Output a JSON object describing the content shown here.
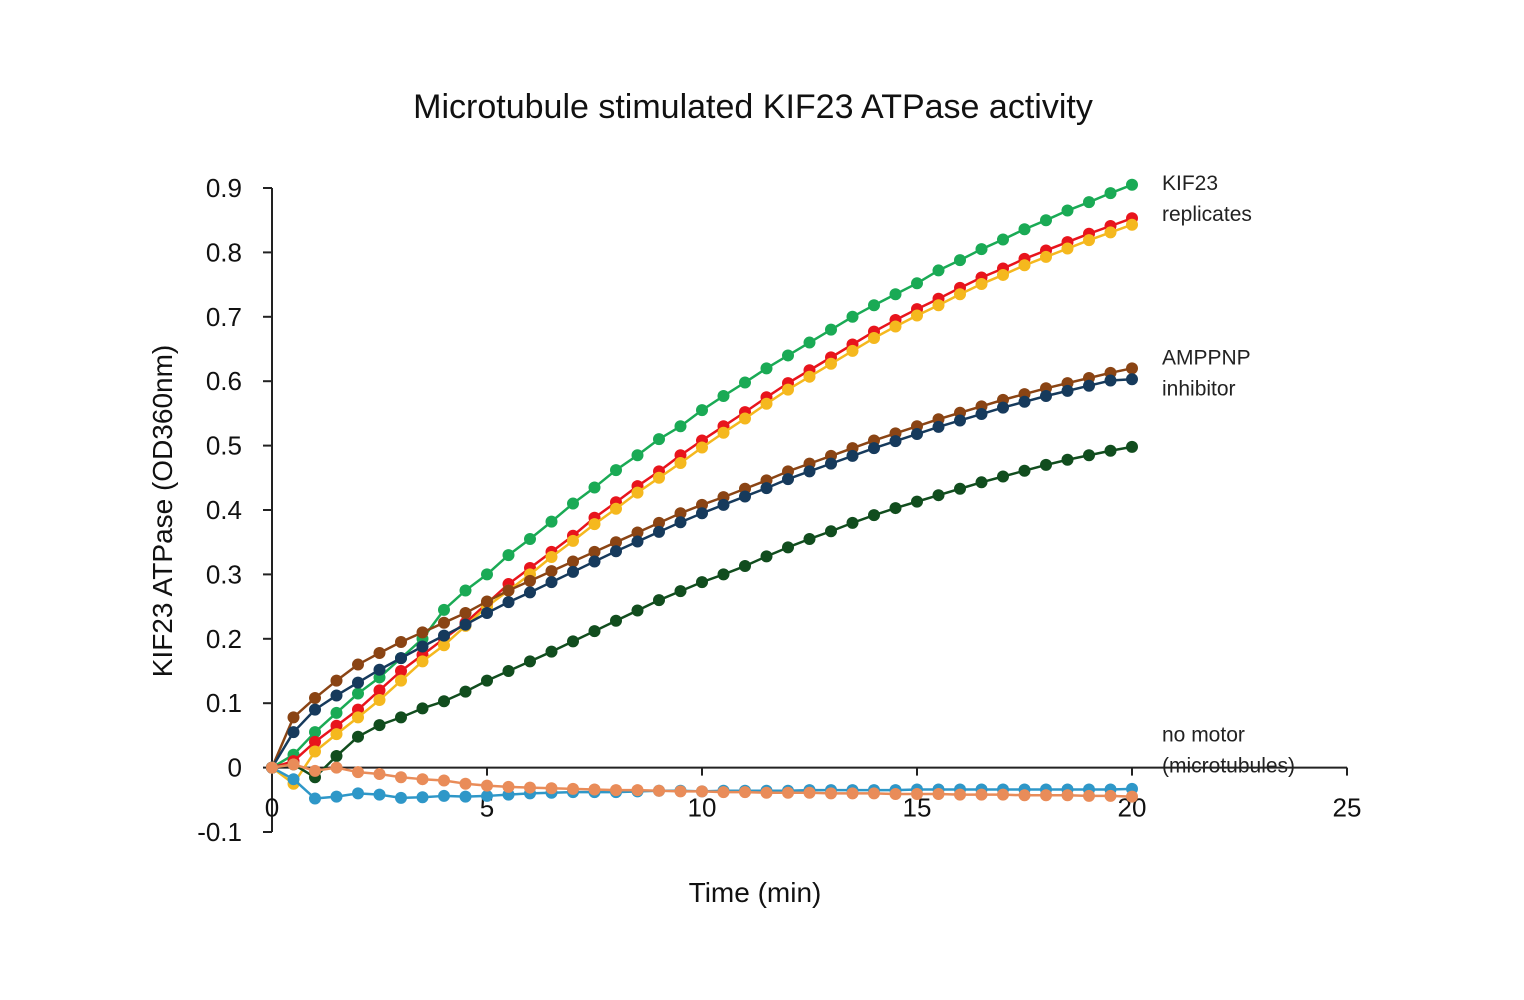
{
  "chart_data": {
    "type": "line",
    "title": "Microtubule stimulated KIF23 ATPase activity",
    "xlabel": "Time (min)",
    "ylabel": "KIF23 ATPase (OD360nm)",
    "xlim": [
      0,
      25
    ],
    "ylim": [
      -0.1,
      0.9
    ],
    "x_ticks": [
      "0",
      "5",
      "10",
      "15",
      "20",
      "25"
    ],
    "y_ticks": [
      "0.9",
      "0.8",
      "0.7",
      "0.6",
      "0.5",
      "0.4",
      "0.3",
      "0.2",
      "0.1",
      "0",
      "-0.1"
    ],
    "grid": false,
    "legend": "none",
    "annotations": [
      {
        "lines": [
          "KIF23",
          "replicates"
        ],
        "near_series": "KIF23 replicate 1"
      },
      {
        "lines": [
          "AMPPNP",
          "inhibitor"
        ],
        "near_series": "AMPPNP inhibitor 1"
      },
      {
        "lines": [
          "no motor",
          "(microtubules)"
        ],
        "near_series": "No motor 1"
      }
    ],
    "x": [
      0,
      0.5,
      1,
      1.5,
      2,
      2.5,
      3,
      3.5,
      4,
      4.5,
      5,
      5.5,
      6,
      6.5,
      7,
      7.5,
      8,
      8.5,
      9,
      9.5,
      10,
      10.5,
      11,
      11.5,
      12,
      12.5,
      13,
      13.5,
      14,
      14.5,
      15,
      15.5,
      16,
      16.5,
      17,
      17.5,
      18,
      18.5,
      19,
      19.5,
      20
    ],
    "series": [
      {
        "name": "KIF23 replicate 1",
        "color": "#1aaa55",
        "values": [
          0,
          0.02,
          0.055,
          0.085,
          0.115,
          0.14,
          0.17,
          0.2,
          0.245,
          0.275,
          0.3,
          0.33,
          0.355,
          0.382,
          0.41,
          0.435,
          0.462,
          0.485,
          0.51,
          0.53,
          0.555,
          0.577,
          0.598,
          0.62,
          0.64,
          0.66,
          0.68,
          0.7,
          0.718,
          0.735,
          0.752,
          0.772,
          0.788,
          0.805,
          0.82,
          0.836,
          0.85,
          0.865,
          0.878,
          0.892,
          0.905
        ]
      },
      {
        "name": "KIF23 replicate 2",
        "color": "#e8141c",
        "values": [
          0,
          0.01,
          0.04,
          0.065,
          0.09,
          0.12,
          0.15,
          0.175,
          0.2,
          0.225,
          0.255,
          0.285,
          0.31,
          0.335,
          0.36,
          0.388,
          0.412,
          0.437,
          0.46,
          0.485,
          0.508,
          0.53,
          0.552,
          0.575,
          0.597,
          0.617,
          0.637,
          0.657,
          0.677,
          0.695,
          0.712,
          0.728,
          0.745,
          0.761,
          0.775,
          0.79,
          0.803,
          0.816,
          0.829,
          0.841,
          0.853
        ]
      },
      {
        "name": "KIF23 replicate 3",
        "color": "#f5b81e",
        "values": [
          0,
          -0.025,
          0.025,
          0.052,
          0.078,
          0.105,
          0.135,
          0.165,
          0.19,
          0.22,
          0.25,
          0.275,
          0.3,
          0.327,
          0.352,
          0.378,
          0.402,
          0.427,
          0.45,
          0.473,
          0.497,
          0.52,
          0.542,
          0.565,
          0.587,
          0.607,
          0.627,
          0.647,
          0.667,
          0.685,
          0.702,
          0.718,
          0.735,
          0.751,
          0.765,
          0.78,
          0.793,
          0.806,
          0.819,
          0.831,
          0.843
        ]
      },
      {
        "name": "AMPPNP inhibitor 1",
        "color": "#8a4414",
        "values": [
          0,
          0.078,
          0.108,
          0.135,
          0.16,
          0.178,
          0.195,
          0.21,
          0.225,
          0.24,
          0.258,
          0.275,
          0.29,
          0.305,
          0.32,
          0.335,
          0.35,
          0.365,
          0.38,
          0.395,
          0.408,
          0.42,
          0.433,
          0.446,
          0.46,
          0.472,
          0.484,
          0.496,
          0.508,
          0.519,
          0.53,
          0.541,
          0.551,
          0.561,
          0.571,
          0.58,
          0.589,
          0.597,
          0.605,
          0.613,
          0.62
        ]
      },
      {
        "name": "AMPPNP inhibitor 2",
        "color": "#163a5c",
        "values": [
          0,
          0.055,
          0.09,
          0.112,
          0.132,
          0.152,
          0.17,
          0.188,
          0.205,
          0.222,
          0.24,
          0.257,
          0.272,
          0.288,
          0.304,
          0.32,
          0.336,
          0.351,
          0.366,
          0.381,
          0.395,
          0.408,
          0.421,
          0.434,
          0.448,
          0.46,
          0.472,
          0.484,
          0.496,
          0.507,
          0.518,
          0.529,
          0.539,
          0.549,
          0.559,
          0.568,
          0.577,
          0.585,
          0.593,
          0.601,
          0.603
        ]
      },
      {
        "name": "AMPPNP inhibitor 3",
        "color": "#114d1e",
        "values": [
          0,
          0.005,
          -0.015,
          0.018,
          0.048,
          0.066,
          0.078,
          0.092,
          0.103,
          0.118,
          0.135,
          0.15,
          0.165,
          0.18,
          0.196,
          0.212,
          0.228,
          0.244,
          0.26,
          0.274,
          0.288,
          0.3,
          0.313,
          0.328,
          0.342,
          0.355,
          0.367,
          0.38,
          0.392,
          0.403,
          0.413,
          0.423,
          0.433,
          0.443,
          0.452,
          0.461,
          0.47,
          0.478,
          0.485,
          0.492,
          0.498
        ]
      },
      {
        "name": "No motor 1",
        "color": "#2e97c8",
        "values": [
          0,
          -0.018,
          -0.048,
          -0.045,
          -0.04,
          -0.042,
          -0.047,
          -0.046,
          -0.044,
          -0.045,
          -0.044,
          -0.042,
          -0.04,
          -0.039,
          -0.038,
          -0.038,
          -0.038,
          -0.037,
          -0.036,
          -0.036,
          -0.037,
          -0.036,
          -0.036,
          -0.036,
          -0.036,
          -0.035,
          -0.035,
          -0.035,
          -0.035,
          -0.035,
          -0.034,
          -0.034,
          -0.034,
          -0.034,
          -0.034,
          -0.034,
          -0.034,
          -0.034,
          -0.034,
          -0.034,
          -0.033
        ]
      },
      {
        "name": "No motor 2",
        "color": "#e98c59",
        "values": [
          0,
          0.005,
          -0.005,
          0,
          -0.007,
          -0.01,
          -0.015,
          -0.018,
          -0.02,
          -0.025,
          -0.028,
          -0.03,
          -0.031,
          -0.032,
          -0.033,
          -0.034,
          -0.035,
          -0.035,
          -0.036,
          -0.037,
          -0.037,
          -0.038,
          -0.038,
          -0.039,
          -0.039,
          -0.039,
          -0.04,
          -0.04,
          -0.04,
          -0.041,
          -0.041,
          -0.041,
          -0.042,
          -0.042,
          -0.042,
          -0.043,
          -0.043,
          -0.043,
          -0.044,
          -0.044,
          -0.045
        ]
      }
    ]
  }
}
